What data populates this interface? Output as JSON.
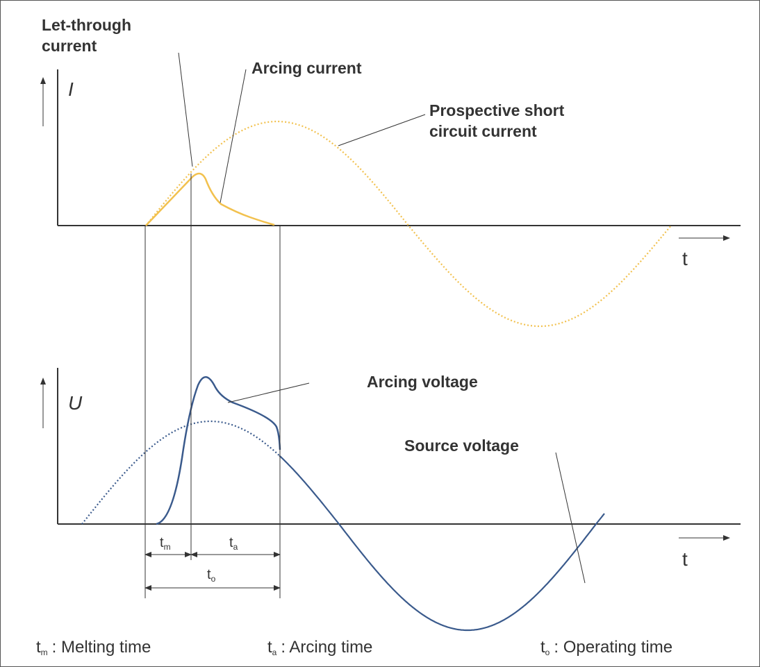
{
  "top_chart": {
    "axis_label": "I",
    "time_label": "t",
    "let_through_current": [
      "Let-through",
      "current"
    ],
    "arcing_current": "Arcing current",
    "prospective_current": [
      "Prospective short",
      "circuit current"
    ]
  },
  "bottom_chart": {
    "axis_label": "U",
    "time_label": "t",
    "arcing_voltage": "Arcing voltage",
    "source_voltage": "Source voltage"
  },
  "intervals": [
    {
      "symbol": "t",
      "subscript": "m"
    },
    {
      "symbol": "t",
      "subscript": "a"
    },
    {
      "symbol": "t",
      "subscript": "o"
    }
  ],
  "legend": [
    {
      "symbol": "t",
      "subscript": "m",
      "description": ": Melting time"
    },
    {
      "symbol": "t",
      "subscript": "a",
      "description": ": Arcing time"
    },
    {
      "symbol": "t",
      "subscript": "o",
      "description": ": Operating time"
    }
  ]
}
